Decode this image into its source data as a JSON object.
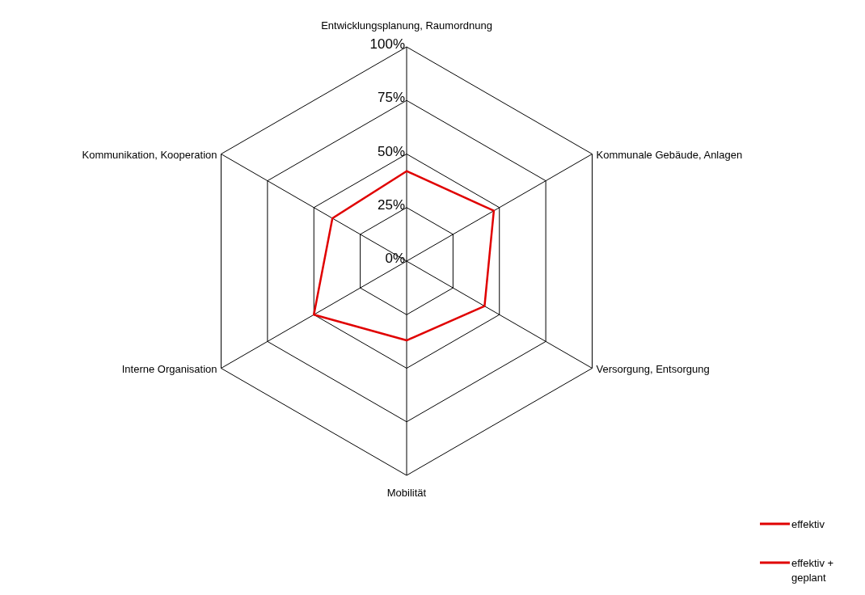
{
  "chart_data": {
    "type": "radar",
    "categories": [
      "Entwicklungsplanung, Raumordnung",
      "Kommunale Gebäude, Anlagen",
      "Versorgung, Entsorgung",
      "Mobilität",
      "Interne Organisation",
      "Kommunikation, Kooperation"
    ],
    "series": [
      {
        "name": "effektiv",
        "color": "#e00000",
        "values": [
          42,
          47,
          42,
          37,
          50,
          40
        ]
      },
      {
        "name": "effektiv + geplant",
        "color": "#e00000",
        "values": [
          null,
          null,
          null,
          null,
          null,
          null
        ]
      }
    ],
    "ylim": [
      0,
      100
    ],
    "yticks": [
      {
        "value": 0,
        "label": "0%"
      },
      {
        "value": 25,
        "label": "25%"
      },
      {
        "value": 50,
        "label": "50%"
      },
      {
        "value": 75,
        "label": "75%"
      },
      {
        "value": 100,
        "label": "100%"
      }
    ],
    "legend": "bottom right"
  }
}
